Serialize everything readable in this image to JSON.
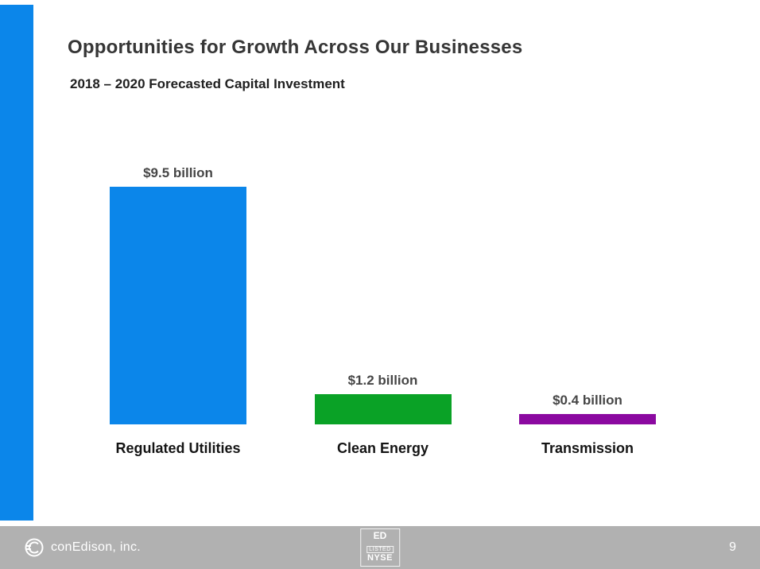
{
  "slide": {
    "title": "Opportunities for Growth Across Our Businesses",
    "subtitle": "2018 – 2020 Forecasted Capital Investment"
  },
  "chart_data": {
    "type": "bar",
    "title": "2018 – 2020 Forecasted Capital Investment",
    "categories": [
      "Regulated Utilities",
      "Clean Energy",
      "Transmission"
    ],
    "values": [
      9.5,
      1.2,
      0.4
    ],
    "value_labels": [
      "$9.5 billion",
      "$1.2 billion",
      "$0.4 billion"
    ],
    "colors": [
      "#0b86ea",
      "#0aa226",
      "#8b09a0"
    ],
    "unit": "USD billions",
    "xlabel": "",
    "ylabel": "",
    "ylim": [
      0,
      10
    ],
    "grid": false,
    "legend": "none",
    "axes_visible": false
  },
  "footer": {
    "company": "conEdison, inc.",
    "nyse_badge": {
      "line1": "ED",
      "line2": "LISTED",
      "line3": "NYSE"
    },
    "page_number": "9"
  },
  "colors": {
    "accent_stripe": "#0b86ea",
    "footer_background": "#b1b1b1",
    "title_text": "#363636",
    "value_label_text": "#464646"
  }
}
